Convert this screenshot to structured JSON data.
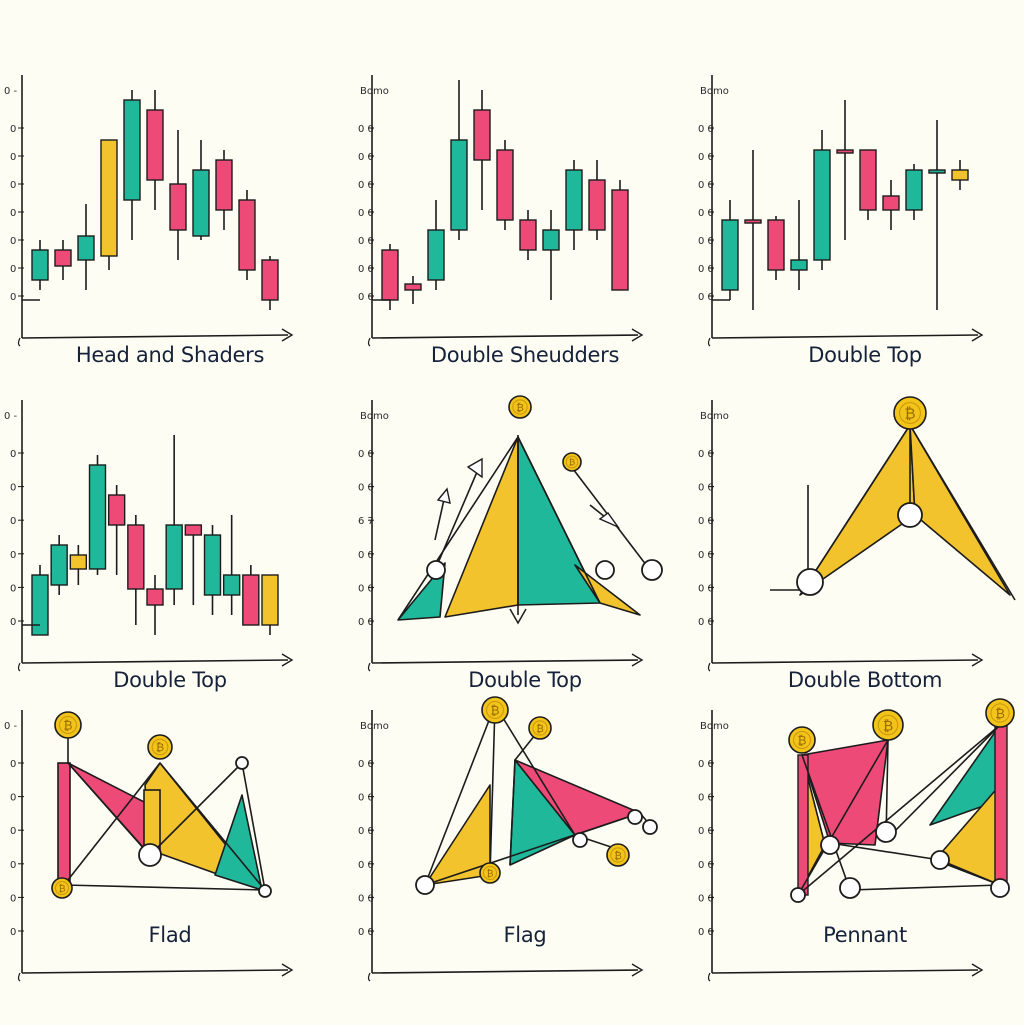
{
  "colors": {
    "teal": "#1fb89a",
    "pink": "#ee4a78",
    "yellow": "#f3c32e",
    "ink": "#1c1c1c",
    "coin": "#f2c419",
    "bg": "#fdfdf4"
  },
  "panels": [
    {
      "caption": "Head and Shaders",
      "top_label": "",
      "ticks": [
        "0",
        "0",
        "0",
        "0",
        "0",
        "0",
        "0"
      ]
    },
    {
      "caption": "Double Sheudders",
      "top_label": "Bomo",
      "ticks": [
        "0 0",
        "0 0",
        "0 0",
        "0 0",
        "0 0",
        "0 0",
        "0 0"
      ]
    },
    {
      "caption": "Double Top",
      "top_label": "Bomo",
      "ticks": [
        "0 0",
        "0 0",
        "0 0",
        "0 0",
        "0 0",
        "0 0",
        "0 0"
      ]
    },
    {
      "caption": "Double Top",
      "top_label": "",
      "ticks": [
        "0",
        "0",
        "0",
        "0",
        "0",
        "0"
      ]
    },
    {
      "caption": "Double Top",
      "top_label": "Bomo",
      "ticks": [
        "0 0",
        "0 0",
        "6 7",
        "0 0",
        "0 0",
        "0 0"
      ]
    },
    {
      "caption": "Double Bottom",
      "top_label": "Bomo",
      "ticks": [
        "0 0",
        "0 0",
        "0 0",
        "0 0",
        "0 0",
        "0 0"
      ]
    },
    {
      "caption": "Flad",
      "top_label": "",
      "ticks": [
        "0",
        "0",
        "0",
        "0",
        "0",
        "0"
      ]
    },
    {
      "caption": "Flag",
      "top_label": "Bomo",
      "ticks": [
        "0 0",
        "0 0",
        "0 0",
        "0 0",
        "0 0",
        "0 0"
      ]
    },
    {
      "caption": "Pennant",
      "top_label": "Bomo",
      "ticks": [
        "0 0",
        "0 0",
        "0 0",
        "0 0",
        "0 0",
        "0 0"
      ]
    }
  ],
  "chart_data": [
    {
      "type": "candlestick",
      "title": "Head and Shaders",
      "candles": [
        {
          "o": 20,
          "c": 35,
          "h": 40,
          "l": 15,
          "color": "teal"
        },
        {
          "o": 35,
          "c": 27,
          "h": 40,
          "l": 20,
          "color": "pink"
        },
        {
          "o": 30,
          "c": 42,
          "h": 58,
          "l": 15,
          "color": "teal"
        },
        {
          "o": 32,
          "c": 90,
          "h": 90,
          "l": 25,
          "color": "yellow"
        },
        {
          "o": 60,
          "c": 110,
          "h": 115,
          "l": 40,
          "color": "teal"
        },
        {
          "o": 105,
          "c": 70,
          "h": 115,
          "l": 55,
          "color": "pink"
        },
        {
          "o": 68,
          "c": 45,
          "h": 95,
          "l": 30,
          "color": "pink"
        },
        {
          "o": 42,
          "c": 75,
          "h": 90,
          "l": 40,
          "color": "teal"
        },
        {
          "o": 80,
          "c": 55,
          "h": 85,
          "l": 45,
          "color": "pink"
        },
        {
          "o": 60,
          "c": 25,
          "h": 65,
          "l": 20,
          "color": "pink"
        },
        {
          "o": 30,
          "c": 10,
          "h": 32,
          "l": 5,
          "color": "pink"
        }
      ]
    },
    {
      "type": "candlestick",
      "title": "Double Sheudders",
      "candles": [
        {
          "o": 35,
          "c": 10,
          "h": 38,
          "l": 5,
          "color": "pink"
        },
        {
          "o": 15,
          "c": 18,
          "h": 22,
          "l": 8,
          "color": "pink"
        },
        {
          "o": 20,
          "c": 45,
          "h": 60,
          "l": 15,
          "color": "teal"
        },
        {
          "o": 45,
          "c": 90,
          "h": 120,
          "l": 40,
          "color": "teal"
        },
        {
          "o": 105,
          "c": 80,
          "h": 115,
          "l": 55,
          "color": "pink"
        },
        {
          "o": 85,
          "c": 50,
          "h": 90,
          "l": 45,
          "color": "pink"
        },
        {
          "o": 50,
          "c": 35,
          "h": 55,
          "l": 30,
          "color": "pink"
        },
        {
          "o": 35,
          "c": 45,
          "h": 55,
          "l": 10,
          "color": "teal"
        },
        {
          "o": 45,
          "c": 75,
          "h": 80,
          "l": 35,
          "color": "teal"
        },
        {
          "o": 70,
          "c": 45,
          "h": 80,
          "l": 40,
          "color": "pink"
        },
        {
          "o": 65,
          "c": 15,
          "h": 70,
          "l": 15,
          "color": "pink"
        }
      ]
    },
    {
      "type": "candlestick",
      "title": "Double Top",
      "candles": [
        {
          "o": 15,
          "c": 50,
          "h": 60,
          "l": 10,
          "color": "teal"
        },
        {
          "o": 50,
          "c": 50,
          "h": 85,
          "l": 5,
          "color": "pink"
        },
        {
          "o": 50,
          "c": 25,
          "h": 52,
          "l": 20,
          "color": "pink"
        },
        {
          "o": 25,
          "c": 30,
          "h": 60,
          "l": 15,
          "color": "teal"
        },
        {
          "o": 30,
          "c": 85,
          "h": 95,
          "l": 25,
          "color": "teal"
        },
        {
          "o": 85,
          "c": 85,
          "h": 110,
          "l": 40,
          "color": "pink"
        },
        {
          "o": 85,
          "c": 55,
          "h": 85,
          "l": 50,
          "color": "pink"
        },
        {
          "o": 62,
          "c": 55,
          "h": 70,
          "l": 45,
          "color": "pink"
        },
        {
          "o": 55,
          "c": 75,
          "h": 78,
          "l": 50,
          "color": "teal"
        },
        {
          "o": 75,
          "c": 75,
          "h": 100,
          "l": 5,
          "color": "teal"
        },
        {
          "o": 75,
          "c": 70,
          "h": 80,
          "l": 65,
          "color": "yellow"
        }
      ]
    },
    {
      "type": "candlestick",
      "title": "Double Top",
      "candles": [
        {
          "o": 5,
          "c": 35,
          "h": 40,
          "l": 5,
          "color": "teal"
        },
        {
          "o": 30,
          "c": 50,
          "h": 55,
          "l": 25,
          "color": "teal"
        },
        {
          "o": 45,
          "c": 38,
          "h": 50,
          "l": 30,
          "color": "yellow"
        },
        {
          "o": 38,
          "c": 90,
          "h": 95,
          "l": 35,
          "color": "teal"
        },
        {
          "o": 75,
          "c": 60,
          "h": 80,
          "l": 35,
          "color": "pink"
        },
        {
          "o": 60,
          "c": 28,
          "h": 65,
          "l": 10,
          "color": "pink"
        },
        {
          "o": 28,
          "c": 20,
          "h": 35,
          "l": 5,
          "color": "pink"
        },
        {
          "o": 28,
          "c": 60,
          "h": 105,
          "l": 20,
          "color": "teal"
        },
        {
          "o": 60,
          "c": 55,
          "h": 60,
          "l": 20,
          "color": "pink"
        },
        {
          "o": 55,
          "c": 25,
          "h": 60,
          "l": 15,
          "color": "teal"
        },
        {
          "o": 25,
          "c": 35,
          "h": 65,
          "l": 15,
          "color": "teal"
        },
        {
          "o": 35,
          "c": 10,
          "h": 40,
          "l": 10,
          "color": "pink"
        },
        {
          "o": 10,
          "c": 35,
          "h": 35,
          "l": 5,
          "color": "yellow"
        }
      ]
    }
  ]
}
